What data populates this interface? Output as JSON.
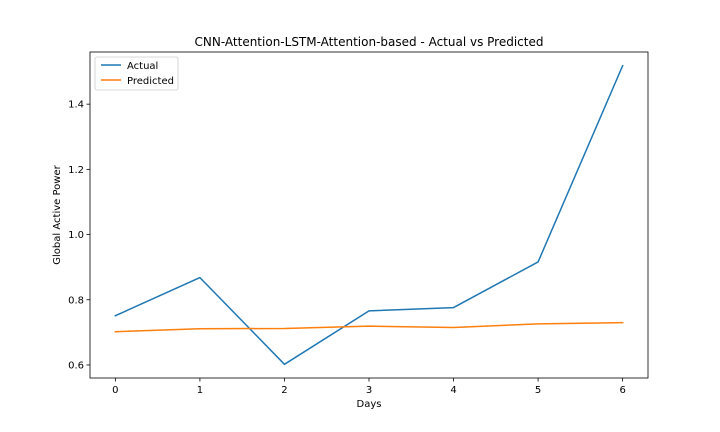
{
  "chart_data": {
    "type": "line",
    "title": "CNN-Attention-LSTM-Attention-based - Actual vs Predicted",
    "xlabel": "Days",
    "ylabel": "Global Active Power",
    "x": [
      0,
      1,
      2,
      3,
      4,
      5,
      6
    ],
    "xlim": [
      -0.3,
      6.3
    ],
    "ylim": [
      0.56,
      1.56
    ],
    "xticks": [
      0,
      1,
      2,
      3,
      4,
      5,
      6
    ],
    "yticks": [
      0.6,
      0.8,
      1.0,
      1.2,
      1.4
    ],
    "ytick_labels": [
      "0.6",
      "0.8",
      "1.0",
      "1.2",
      "1.4"
    ],
    "grid": false,
    "legend_position": "top-left",
    "series": [
      {
        "name": "Actual",
        "color": "#1f77b4",
        "values": [
          0.751,
          0.868,
          0.602,
          0.766,
          0.776,
          0.916,
          1.518
        ]
      },
      {
        "name": "Predicted",
        "color": "#ff7f0e",
        "values": [
          0.702,
          0.711,
          0.712,
          0.719,
          0.715,
          0.726,
          0.73
        ]
      }
    ]
  }
}
